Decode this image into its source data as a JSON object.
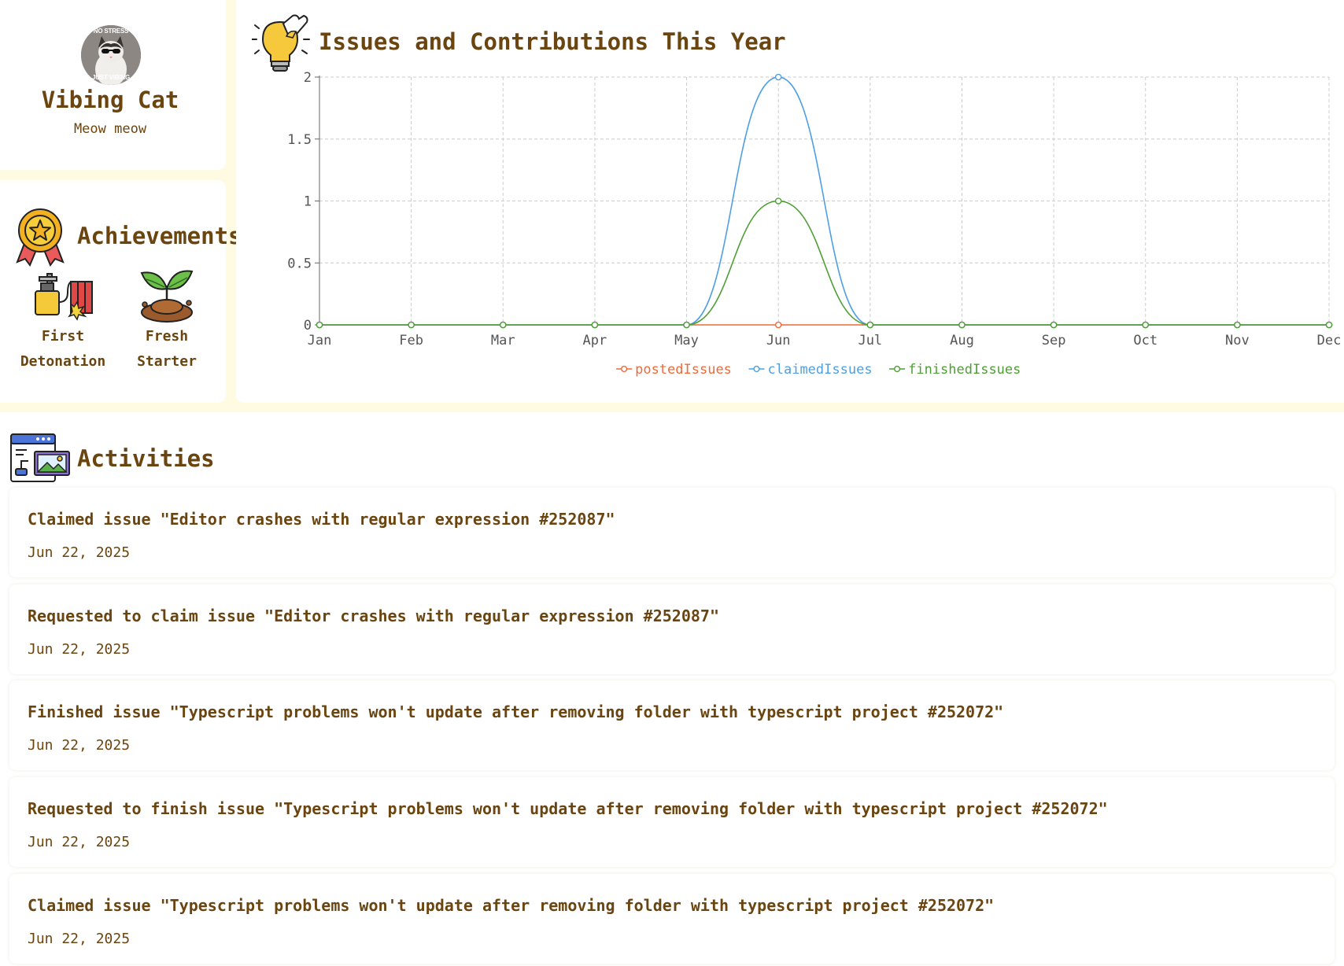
{
  "profile": {
    "name": "Vibing Cat",
    "bio": "Meow meow",
    "avatar_caption_top": "NO STRESS",
    "avatar_caption_bottom": "JUST VIBING"
  },
  "achievements": {
    "title": "Achievements",
    "icon": "medal-icon",
    "badges": [
      {
        "label": "First\nDetonation",
        "icon": "detonator-icon"
      },
      {
        "label": "Fresh\nStarter",
        "icon": "sprout-icon"
      }
    ]
  },
  "contributions": {
    "title": "Issues and Contributions This Year",
    "icon": "lightbulb-puzzle-icon"
  },
  "chart_data": {
    "type": "line",
    "title": "",
    "xlabel": "",
    "ylabel": "",
    "categories": [
      "Jan",
      "Feb",
      "Mar",
      "Apr",
      "May",
      "Jun",
      "Jul",
      "Aug",
      "Sep",
      "Oct",
      "Nov",
      "Dec"
    ],
    "ylim": [
      0,
      2
    ],
    "y_ticks": [
      "0",
      "0.5",
      "1",
      "1.5",
      "2"
    ],
    "grid": true,
    "legend": "bottom",
    "series": [
      {
        "name": "postedIssues",
        "color": "#ee6a3a",
        "values": [
          0,
          0,
          0,
          0,
          0,
          0,
          0,
          0,
          0,
          0,
          0,
          0
        ]
      },
      {
        "name": "claimedIssues",
        "color": "#4f9fe3",
        "values": [
          0,
          0,
          0,
          0,
          0,
          2,
          0,
          0,
          0,
          0,
          0,
          0
        ]
      },
      {
        "name": "finishedIssues",
        "color": "#4d9f34",
        "values": [
          0,
          0,
          0,
          0,
          0,
          1,
          0,
          0,
          0,
          0,
          0,
          0
        ]
      }
    ]
  },
  "activities": {
    "title": "Activities",
    "icon": "browser-gallery-icon",
    "items": [
      {
        "text": "Claimed issue \"Editor crashes with regular expression #252087\"",
        "date": "Jun 22, 2025"
      },
      {
        "text": "Requested to claim issue \"Editor crashes with regular expression #252087\"",
        "date": "Jun 22, 2025"
      },
      {
        "text": "Finished issue \"Typescript problems won't update after removing folder with typescript project #252072\"",
        "date": "Jun 22, 2025"
      },
      {
        "text": "Requested to finish issue \"Typescript problems won't update after removing folder with typescript project #252072\"",
        "date": "Jun 22, 2025"
      },
      {
        "text": "Claimed issue \"Typescript problems won't update after removing folder with typescript project #252072\"",
        "date": "Jun 22, 2025"
      }
    ]
  },
  "colors": {
    "page_background": "#fffbe2",
    "text_brown": "#6b4510",
    "grid": "#cccccc",
    "axis": "#666666"
  }
}
